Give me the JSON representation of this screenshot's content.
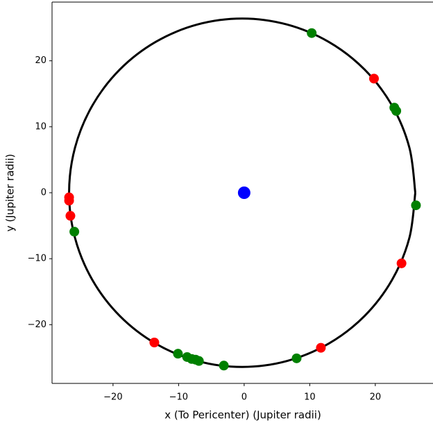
{
  "chart_data": {
    "type": "scatter",
    "xlabel": "x (To Pericenter) (Jupiter radii)",
    "ylabel": "y (Jupiter radii)",
    "xlim": [
      -29.3,
      28.8
    ],
    "ylim": [
      -28.9,
      28.9
    ],
    "xticks": [
      {
        "value": -20,
        "label": "−20"
      },
      {
        "value": -10,
        "label": "−10"
      },
      0,
      10,
      20
    ],
    "yticks": [
      {
        "value": -20,
        "label": "−20"
      },
      {
        "value": -10,
        "label": "−10"
      },
      0,
      10,
      20
    ],
    "series": [
      {
        "type": "line",
        "color": "#000000",
        "x": [
          26.1,
          25.2,
          22.56,
          18.37,
          12.9,
          6.53,
          -0.3,
          -7.13,
          -13.5,
          -18.97,
          -23.16,
          -25.8,
          -26.7,
          -25.8,
          -23.16,
          -18.97,
          -13.5,
          -7.13,
          -0.3,
          6.53,
          12.9,
          18.37,
          22.56,
          25.2,
          26.1
        ],
        "y": [
          0,
          6.83,
          13.2,
          18.67,
          22.86,
          25.5,
          26.4,
          25.5,
          22.86,
          18.67,
          13.2,
          6.83,
          0,
          -6.83,
          -13.2,
          -18.67,
          -22.86,
          -25.5,
          -26.4,
          -25.5,
          -22.86,
          -18.67,
          -13.2,
          -6.83,
          0
        ]
      },
      {
        "type": "scatter",
        "color": "#008000",
        "x": [
          10.3,
          22.9,
          23.2,
          26.2,
          -25.9,
          8.0,
          -3.1,
          -10.1,
          -8.7,
          -8.0,
          -7.4,
          -6.9
        ],
        "y": [
          24.2,
          12.9,
          12.4,
          -1.9,
          -5.9,
          -25.1,
          -26.2,
          -24.4,
          -24.9,
          -25.2,
          -25.3,
          -25.5
        ]
      },
      {
        "type": "scatter",
        "color": "#ff0000",
        "x": [
          19.8,
          -26.7,
          -26.7,
          -26.5,
          24.0,
          11.7,
          -13.7
        ],
        "y": [
          17.3,
          -0.7,
          -1.2,
          -3.5,
          -10.7,
          -23.5,
          -22.7
        ]
      },
      {
        "type": "scatter",
        "color": "#0000ff",
        "size": 9,
        "x": [
          0
        ],
        "y": [
          0
        ]
      }
    ]
  }
}
